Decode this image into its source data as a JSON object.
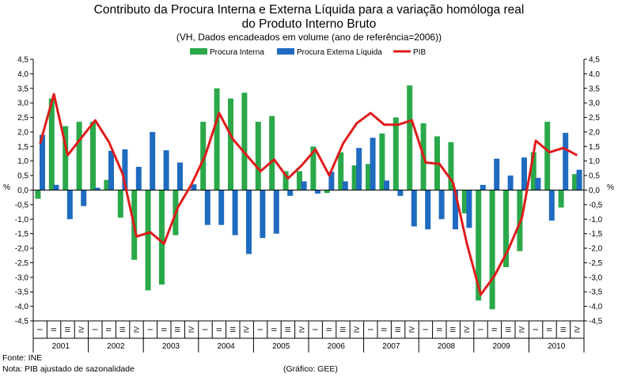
{
  "chart_data": {
    "type": "bar+line",
    "title": "Contributo da Procura Interna e Externa Líquida para a variação homóloga real",
    "title_line2": "do Produto Interno Bruto",
    "subtitle": "(VH, Dados encadeados em volume (ano de referência=2006))",
    "ylabel": "%",
    "ylim": [
      -4.5,
      4.5
    ],
    "ytick_step": 0.5,
    "quarters": [
      "I",
      "II",
      "III",
      "IV"
    ],
    "years": [
      "2001",
      "2002",
      "2003",
      "2004",
      "2005",
      "2006",
      "2007",
      "2008",
      "2009",
      "2010"
    ],
    "series": [
      {
        "name": "Procura Interna",
        "type": "bar",
        "color": "#2aa84a",
        "values": [
          -0.3,
          3.15,
          2.2,
          2.35,
          2.35,
          0.35,
          -0.95,
          -2.4,
          -3.45,
          -3.25,
          -1.55,
          0.0,
          2.35,
          3.5,
          3.15,
          3.35,
          2.35,
          2.55,
          0.65,
          0.65,
          1.5,
          -0.1,
          1.3,
          0.85,
          0.9,
          1.95,
          2.5,
          3.6,
          2.3,
          1.85,
          1.65,
          -0.8,
          -3.8,
          -4.1,
          -2.65,
          -2.1,
          1.3,
          2.35,
          -0.6,
          0.55
        ]
      },
      {
        "name": "Procura Externa Líquida",
        "type": "bar",
        "color": "#1f6bc0",
        "values": [
          1.9,
          0.18,
          -1.0,
          -0.55,
          0.08,
          1.35,
          1.4,
          0.8,
          2.0,
          1.37,
          0.95,
          0.2,
          -1.2,
          -1.2,
          -1.55,
          -2.2,
          -1.65,
          -1.5,
          -0.2,
          0.3,
          -0.12,
          0.63,
          0.3,
          1.45,
          1.8,
          0.33,
          -0.2,
          -1.25,
          -1.35,
          -1.0,
          -1.35,
          -1.3,
          0.18,
          1.08,
          0.5,
          1.12,
          0.42,
          -1.05,
          1.97,
          0.7
        ]
      },
      {
        "name": "PIB",
        "type": "line",
        "color": "#e01b1b",
        "values": [
          1.6,
          3.3,
          1.2,
          1.8,
          2.4,
          1.65,
          0.55,
          -1.6,
          -1.45,
          -1.85,
          -0.6,
          0.2,
          1.2,
          2.65,
          1.75,
          1.2,
          0.65,
          1.05,
          0.4,
          0.85,
          1.4,
          0.5,
          1.6,
          2.3,
          2.65,
          2.25,
          2.25,
          2.4,
          0.95,
          0.9,
          0.25,
          -1.85,
          -3.6,
          -2.95,
          -2.05,
          -0.95,
          1.7,
          1.3,
          1.45,
          1.2
        ]
      }
    ]
  },
  "footer": {
    "source": "Fonte:  INE",
    "note": "Nota: PIB ajustado de sazonalidade",
    "credit": "(Gráfico: GEE)"
  }
}
